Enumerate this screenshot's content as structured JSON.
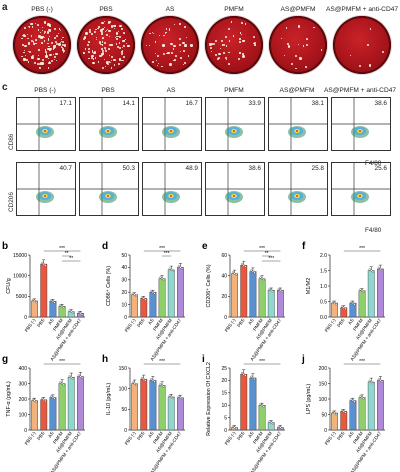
{
  "panel_a": {
    "letter": "a",
    "groups": [
      "PBS (-)",
      "PBS",
      "AS",
      "PMFM",
      "AS@PMFM",
      "AS@PMFM + anti-CD47"
    ],
    "colony_density": [
      0.9,
      0.85,
      0.35,
      0.3,
      0.12,
      0.04
    ]
  },
  "panel_c": {
    "letter": "c",
    "groups": [
      "PBS (-)",
      "PBS",
      "AS",
      "PMFM",
      "AS@PMFM",
      "AS@PMFM + anti-CD47"
    ],
    "row1_ylabel": "CD86",
    "row1_values": [
      "17.1",
      "14.1",
      "16.7",
      "33.9",
      "38.1",
      "38.6"
    ],
    "row2_ylabel": "CD206",
    "row2_values": [
      "40.7",
      "50.3",
      "48.9",
      "38.6",
      "25.8",
      "25.6"
    ],
    "xlabel": "F4/80"
  },
  "colors": {
    "pbs_neg": "#f2b27a",
    "pbs": "#e9573f",
    "as": "#5a8fd0",
    "pmfm": "#8fcf6b",
    "as_pmfm": "#8fd8cf",
    "as_pmfm_cd47": "#b08ad8"
  },
  "categories": [
    "PBS (-)",
    "PBS",
    "AS",
    "PMFM",
    "AS@PMFM",
    "AS@PMFM + anti-CD47"
  ],
  "chart_data": [
    {
      "letter": "b",
      "type": "bar",
      "ylabel": "CFU/g",
      "yticks": [
        "0",
        "5000",
        "10000",
        "15000"
      ],
      "ylim": [
        0,
        15000
      ],
      "values": [
        3900,
        12800,
        3800,
        2600,
        1300,
        900
      ],
      "sig": [
        "***",
        "**",
        "**"
      ]
    },
    {
      "letter": "d",
      "type": "bar",
      "ylabel": "CD86⁺ Cells (%)",
      "yticks": [
        "0",
        "10",
        "20",
        "30",
        "40",
        "50"
      ],
      "ylim": [
        0,
        50
      ],
      "values": [
        18,
        15,
        20,
        31,
        38,
        40
      ],
      "sig": [
        "***",
        "***"
      ]
    },
    {
      "letter": "e",
      "type": "bar",
      "ylabel": "CD206⁺ Cells (%)",
      "yticks": [
        "0",
        "20",
        "40",
        "60"
      ],
      "ylim": [
        0,
        60
      ],
      "values": [
        42,
        50,
        44,
        37,
        26,
        26
      ],
      "sig": [
        "***",
        "**",
        "***"
      ]
    },
    {
      "letter": "f",
      "type": "bar",
      "ylabel": "M1/M2",
      "yticks": [
        "0.0",
        "0.5",
        "1.0",
        "1.5",
        "2.0"
      ],
      "ylim": [
        0,
        2.0
      ],
      "values": [
        0.45,
        0.3,
        0.45,
        0.85,
        1.5,
        1.55
      ],
      "sig": [
        "***"
      ]
    },
    {
      "letter": "g",
      "type": "bar",
      "ylabel": "TNF-α (pg/mL)",
      "yticks": [
        "0",
        "100",
        "200",
        "300",
        "400"
      ],
      "ylim": [
        0,
        400
      ],
      "values": [
        190,
        195,
        210,
        300,
        340,
        345
      ],
      "sig": [
        "***"
      ]
    },
    {
      "letter": "h",
      "type": "bar",
      "ylabel": "IL-10 (pg/mL)",
      "yticks": [
        "0",
        "50",
        "100",
        "150"
      ],
      "ylim": [
        0,
        150
      ],
      "values": [
        112,
        123,
        120,
        108,
        80,
        78
      ],
      "sig": [
        "***"
      ]
    },
    {
      "letter": "i",
      "type": "bar",
      "ylabel": "Relative Expression Of CXCL2",
      "yticks": [
        "0",
        "5",
        "10",
        "15",
        "20",
        "25"
      ],
      "ylim": [
        0,
        25
      ],
      "values": [
        1,
        22.5,
        21,
        10,
        3,
        1
      ],
      "sig": [
        "***"
      ]
    },
    {
      "letter": "j",
      "type": "bar",
      "ylabel": "LPS (pg/mL)",
      "yticks": [
        "0",
        "50",
        "100",
        "150",
        "200"
      ],
      "ylim": [
        0,
        200
      ],
      "values": [
        55,
        60,
        95,
        105,
        155,
        160
      ],
      "sig": [
        "***"
      ]
    }
  ]
}
